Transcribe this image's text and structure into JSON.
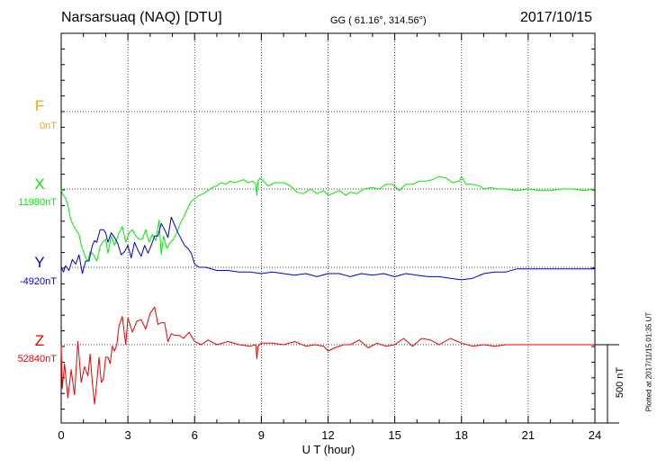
{
  "header": {
    "station": "Narsarsuaq (NAQ)  [DTU]",
    "coords": "GG ( 61.16°, 314.56°)",
    "date": "2017/10/15"
  },
  "footer": {
    "plotted": "Plotted at 2017/11/15 01:35 UT",
    "scale_bar": "500 nT"
  },
  "chart_data": {
    "type": "line",
    "xlabel": "U T (hour)",
    "xlim": [
      0,
      24
    ],
    "x_ticks": [
      0,
      3,
      6,
      9,
      12,
      15,
      18,
      21,
      24
    ],
    "y_unit": "nT",
    "scale_bar_nT": 500,
    "grid": "dotted",
    "colors": {
      "F": "#ffa500",
      "X": "#00ee00",
      "Y": "#0000dd",
      "Z": "#ee0000"
    },
    "series": [
      {
        "name": "F",
        "baseline_label": "0nT",
        "color": "#ffa500",
        "x": [],
        "y": []
      },
      {
        "name": "X",
        "baseline_label": "11980nT",
        "color": "#00ee00",
        "x": [
          0,
          0.05,
          0.2,
          0.3,
          0.4,
          0.5,
          0.65,
          0.8,
          0.9,
          1.0,
          1.1,
          1.2,
          1.3,
          1.45,
          1.6,
          1.75,
          1.85,
          2.0,
          2.1,
          2.25,
          2.4,
          2.6,
          2.75,
          2.9,
          3.05,
          3.2,
          3.35,
          3.5,
          3.65,
          3.8,
          3.95,
          4.1,
          4.25,
          4.4,
          4.5,
          4.6,
          4.75,
          4.9,
          5.05,
          5.2,
          5.35,
          5.5,
          5.7,
          5.85,
          6.0,
          6.2,
          6.4,
          6.6,
          6.8,
          7.0,
          7.2,
          7.4,
          7.6,
          7.8,
          8.0,
          8.2,
          8.4,
          8.6,
          8.75,
          8.8,
          8.85,
          8.95,
          9.1,
          9.3,
          9.6,
          10.0,
          10.3,
          10.6,
          10.9,
          11.2,
          11.5,
          11.8,
          12.0,
          12.2,
          12.5,
          12.8,
          13.0,
          13.3,
          13.6,
          14.0,
          14.3,
          14.6,
          14.9,
          15.2,
          15.5,
          15.8,
          16.1,
          16.4,
          16.7,
          17.0,
          17.3,
          17.6,
          17.9,
          18.0,
          18.2,
          18.5,
          18.8,
          19.0,
          19.3,
          19.6,
          20.0,
          20.5,
          21.0,
          21.5,
          22.0,
          22.5,
          23.0,
          23.5,
          24.0
        ],
        "y": [
          11980,
          11950,
          11920,
          11880,
          11800,
          11760,
          11720,
          11690,
          11620,
          11580,
          11540,
          11520,
          11580,
          11560,
          11520,
          11610,
          11640,
          11660,
          11570,
          11680,
          11620,
          11700,
          11740,
          11640,
          11700,
          11720,
          11680,
          11660,
          11660,
          11720,
          11640,
          11690,
          11650,
          11780,
          11560,
          11680,
          11600,
          11640,
          11660,
          11700,
          11760,
          11800,
          11860,
          11900,
          11920,
          11940,
          11950,
          11970,
          11990,
          12000,
          12020,
          12010,
          12030,
          12020,
          12030,
          12040,
          12020,
          12030,
          12010,
          11940,
          12030,
          12050,
          12030,
          12000,
          12020,
          12020,
          12000,
          11960,
          11950,
          11980,
          11950,
          11970,
          11940,
          11950,
          11970,
          11940,
          11960,
          11950,
          11980,
          11990,
          11980,
          12010,
          12010,
          11970,
          12010,
          12010,
          12030,
          12030,
          12040,
          12060,
          12050,
          12020,
          12030,
          12060,
          12010,
          12010,
          12000,
          11980,
          11990,
          11980,
          11980,
          11970,
          11980,
          11970,
          11970,
          11980,
          11980,
          11970,
          11980
        ]
      },
      {
        "name": "Y",
        "baseline_label": "-4920nT",
        "color": "#0000dd",
        "x": [
          0,
          0.1,
          0.2,
          0.35,
          0.5,
          0.65,
          0.8,
          0.95,
          1.1,
          1.25,
          1.4,
          1.5,
          1.6,
          1.75,
          1.9,
          2.0,
          2.1,
          2.25,
          2.4,
          2.55,
          2.7,
          2.85,
          3.0,
          3.15,
          3.3,
          3.45,
          3.6,
          3.75,
          3.9,
          4.05,
          4.2,
          4.35,
          4.5,
          4.65,
          4.8,
          4.95,
          5.1,
          5.25,
          5.4,
          5.55,
          5.7,
          5.85,
          6.0,
          6.2,
          6.5,
          7.0,
          7.5,
          8.0,
          8.5,
          9.0,
          9.5,
          10.0,
          10.5,
          11.0,
          11.5,
          12.0,
          12.5,
          13.0,
          13.5,
          14.0,
          14.5,
          15.0,
          15.5,
          16.0,
          16.5,
          17.0,
          17.5,
          18.0,
          18.5,
          19.0,
          19.5,
          20.0,
          20.5,
          21.0,
          21.5,
          22.0,
          22.5,
          23.0,
          23.5,
          24.0
        ],
        "y": [
          -4920,
          -4950,
          -4910,
          -4940,
          -4870,
          -4900,
          -4840,
          -4960,
          -4880,
          -4880,
          -4780,
          -4750,
          -4760,
          -4680,
          -4680,
          -4700,
          -4760,
          -4700,
          -4730,
          -4770,
          -4840,
          -4820,
          -4780,
          -4860,
          -4760,
          -4810,
          -4850,
          -4780,
          -4830,
          -4780,
          -4720,
          -4720,
          -4640,
          -4680,
          -4730,
          -4600,
          -4650,
          -4700,
          -4740,
          -4780,
          -4800,
          -4830,
          -4900,
          -4920,
          -4920,
          -4940,
          -4940,
          -4950,
          -4950,
          -4960,
          -4950,
          -4960,
          -4970,
          -4960,
          -4980,
          -4960,
          -4960,
          -4980,
          -4960,
          -4970,
          -4960,
          -4980,
          -4960,
          -4970,
          -4980,
          -4980,
          -4990,
          -5000,
          -4990,
          -4960,
          -4950,
          -4950,
          -4930,
          -4930,
          -4930,
          -4930,
          -4930,
          -4930,
          -4930,
          -4930
        ]
      },
      {
        "name": "Z",
        "baseline_label": "52840nT",
        "color": "#ee0000",
        "x": [
          0,
          0.05,
          0.15,
          0.3,
          0.45,
          0.6,
          0.75,
          0.9,
          1.05,
          1.2,
          1.3,
          1.4,
          1.5,
          1.6,
          1.7,
          1.8,
          1.9,
          2.0,
          2.1,
          2.2,
          2.3,
          2.4,
          2.5,
          2.6,
          2.75,
          2.9,
          3.0,
          3.2,
          3.4,
          3.6,
          3.8,
          4.0,
          4.2,
          4.35,
          4.5,
          4.65,
          4.8,
          4.95,
          5.1,
          5.3,
          5.5,
          5.75,
          6.0,
          6.3,
          6.6,
          7.0,
          7.5,
          8.0,
          8.5,
          8.75,
          8.8,
          8.85,
          9.0,
          9.5,
          10.0,
          10.5,
          11.0,
          11.4,
          11.8,
          12.0,
          12.3,
          12.7,
          13.0,
          13.4,
          13.8,
          14.2,
          14.6,
          15.0,
          15.4,
          15.8,
          16.2,
          16.6,
          17.0,
          17.5,
          18.0,
          18.5,
          19.0,
          19.5,
          20.0,
          20.5,
          21.0,
          22.0,
          23.0,
          24.0
        ],
        "y": [
          52840,
          52560,
          52720,
          52500,
          52680,
          52520,
          52860,
          52600,
          52700,
          52640,
          52780,
          52600,
          52460,
          52600,
          52760,
          52600,
          52620,
          52760,
          52760,
          52720,
          52830,
          52800,
          52840,
          52960,
          53020,
          52840,
          53010,
          52920,
          52990,
          53000,
          52940,
          53040,
          53080,
          52970,
          52980,
          52980,
          52860,
          52910,
          52900,
          52900,
          52880,
          52920,
          52860,
          52840,
          52870,
          52840,
          52860,
          52840,
          52830,
          52840,
          52750,
          52830,
          52850,
          52850,
          52840,
          52860,
          52830,
          52840,
          52830,
          52800,
          52820,
          52840,
          52840,
          52870,
          52820,
          52850,
          52830,
          52840,
          52880,
          52830,
          52880,
          52870,
          52840,
          52880,
          52850,
          52830,
          52840,
          52830,
          52840,
          52840,
          52840,
          52840,
          52840,
          52840
        ]
      }
    ]
  }
}
